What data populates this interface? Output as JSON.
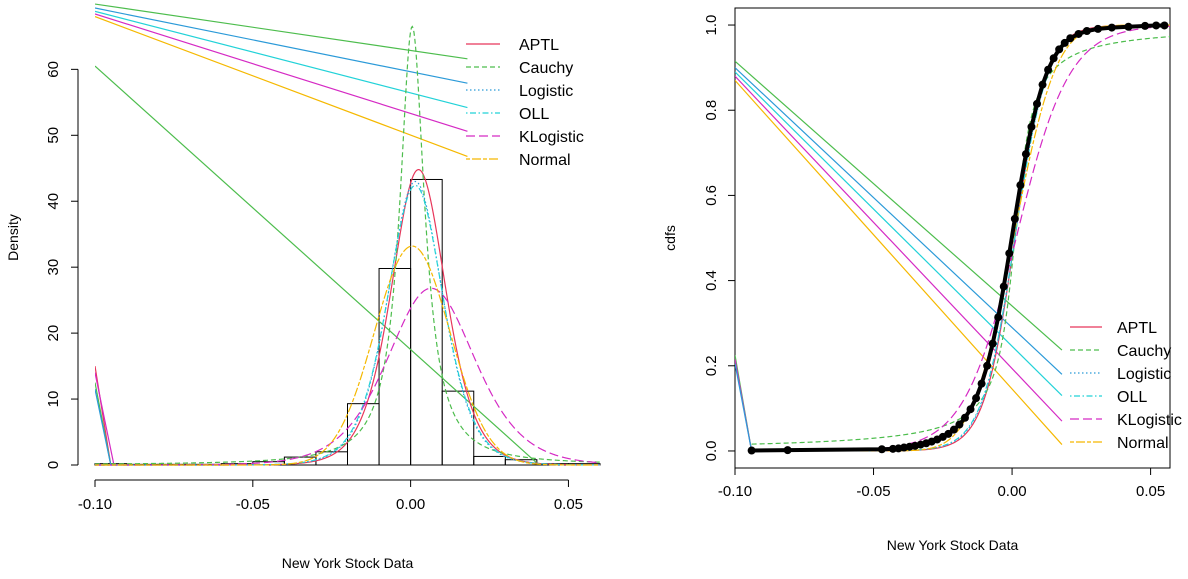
{
  "chart_data": [
    {
      "type": "histogram",
      "xlabel": "New York Stock Data",
      "ylabel": "Density",
      "xlim": [
        -0.1,
        0.06
      ],
      "ylim": [
        0,
        69
      ],
      "x_ticks": [
        -0.1,
        -0.05,
        0.0,
        0.05
      ],
      "x_tick_labels": [
        "-0.10",
        "-0.05",
        "0.00",
        "0.05"
      ],
      "y_ticks": [
        0,
        10,
        20,
        30,
        40,
        50,
        60
      ],
      "y_tick_labels": [
        "0",
        "10",
        "20",
        "30",
        "40",
        "50",
        "60"
      ],
      "histogram": {
        "breaks": [
          -0.1,
          -0.09,
          -0.08,
          -0.07,
          -0.06,
          -0.05,
          -0.04,
          -0.03,
          -0.02,
          -0.01,
          0.0,
          0.01,
          0.02,
          0.03,
          0.04,
          0.05,
          0.06
        ],
        "density": [
          0.2,
          0.1,
          0.1,
          0.1,
          0.2,
          0.5,
          1.2,
          2.0,
          9.3,
          29.8,
          43.3,
          11.2,
          1.3,
          0.8,
          0.2,
          0.2
        ]
      },
      "legend": {
        "position": "top-right",
        "entries": [
          {
            "label": "APTL",
            "color": "#e8365a",
            "dash": "solid"
          },
          {
            "label": "Cauchy",
            "color": "#4dbd4d",
            "dash": "dashed"
          },
          {
            "label": "Logistic",
            "color": "#2b9ad8",
            "dash": "dotted"
          },
          {
            "label": "OLL",
            "color": "#22d2d8",
            "dash": "dotdash"
          },
          {
            "label": "KLogistic",
            "color": "#d52ac4",
            "dash": "longdash"
          },
          {
            "label": "Normal",
            "color": "#f5b800",
            "dash": "twodash"
          }
        ]
      },
      "series": [
        {
          "name": "APTL",
          "distribution": "peaked",
          "location": 0.0025,
          "scale": 0.0072,
          "peak": 44.8
        },
        {
          "name": "Cauchy",
          "distribution": "cauchy",
          "location": 0.0005,
          "scale": 0.0048,
          "peak": 66.5
        },
        {
          "name": "Logistic",
          "distribution": "logistic",
          "location": 0.0015,
          "scale": 0.0058,
          "peak": 43.0
        },
        {
          "name": "OLL",
          "distribution": "logistic",
          "location": 0.0015,
          "scale": 0.0059,
          "peak": 42.4
        },
        {
          "name": "KLogistic",
          "distribution": "logistic",
          "location": 0.0065,
          "scale": 0.0093,
          "peak": 26.8
        },
        {
          "name": "Normal",
          "distribution": "normal",
          "location": 0.0005,
          "scale": 0.012,
          "peak": 33.2
        }
      ],
      "stray_lines": [
        {
          "series": "Cauchy",
          "points": [
            [
              -0.1,
              60.5
            ],
            [
              0.04,
              0.3
            ]
          ]
        },
        {
          "series": "Normal",
          "points": [
            [
              -0.1,
              68.0
            ],
            [
              0.018,
              46.8
            ]
          ]
        },
        {
          "series": "KLogistic",
          "points": [
            [
              -0.1,
              68.4
            ],
            [
              0.018,
              50.6
            ]
          ]
        },
        {
          "series": "OLL",
          "points": [
            [
              -0.1,
              68.8
            ],
            [
              0.018,
              54.2
            ]
          ]
        },
        {
          "series": "Logistic",
          "points": [
            [
              -0.1,
              69.3
            ],
            [
              0.018,
              57.9
            ]
          ]
        },
        {
          "series": "Cauchy",
          "points": [
            [
              -0.1,
              69.9
            ],
            [
              0.018,
              61.6
            ]
          ]
        },
        {
          "series": "APTL",
          "points": [
            [
              -0.1,
              15.0
            ],
            [
              -0.095,
              0.0
            ]
          ]
        },
        {
          "series": "KLogistic",
          "points": [
            [
              -0.1,
              14.0
            ],
            [
              -0.094,
              0.0
            ]
          ]
        },
        {
          "series": "Cauchy",
          "points": [
            [
              -0.1,
              12.5
            ],
            [
              -0.095,
              0.0
            ]
          ]
        },
        {
          "series": "Logistic",
          "points": [
            [
              -0.1,
              11.5
            ],
            [
              -0.095,
              0.0
            ]
          ]
        }
      ]
    },
    {
      "type": "line",
      "xlabel": "New York Stock Data",
      "ylabel": "cdfs",
      "xlim": [
        -0.1,
        0.057
      ],
      "ylim": [
        -0.04,
        1.04
      ],
      "x_ticks": [
        -0.1,
        -0.05,
        0.0,
        0.05
      ],
      "x_tick_labels": [
        "-0.10",
        "-0.05",
        "0.00",
        "0.05"
      ],
      "y_ticks": [
        0.0,
        0.2,
        0.4,
        0.6,
        0.8,
        1.0
      ],
      "y_tick_labels": [
        "0.0",
        "0.2",
        "0.4",
        "0.6",
        "0.8",
        "1.0"
      ],
      "legend": {
        "position": "bottom-right",
        "entries": [
          {
            "label": "APTL",
            "color": "#e8365a",
            "dash": "solid"
          },
          {
            "label": "Cauchy",
            "color": "#4dbd4d",
            "dash": "dashed"
          },
          {
            "label": "Logistic",
            "color": "#2b9ad8",
            "dash": "dotted"
          },
          {
            "label": "OLL",
            "color": "#22d2d8",
            "dash": "dotdash"
          },
          {
            "label": "KLogistic",
            "color": "#d52ac4",
            "dash": "longdash"
          },
          {
            "label": "Normal",
            "color": "#f5b800",
            "dash": "twodash"
          }
        ]
      },
      "series": [
        {
          "name": "APTL",
          "distribution": "logistic",
          "location": 0.001,
          "scale": 0.0056
        },
        {
          "name": "Cauchy",
          "distribution": "cauchy",
          "location": 0.001,
          "scale": 0.0048
        },
        {
          "name": "Logistic",
          "distribution": "logistic",
          "location": 0.001,
          "scale": 0.0058
        },
        {
          "name": "OLL",
          "distribution": "logistic",
          "location": 0.001,
          "scale": 0.0059
        },
        {
          "name": "KLogistic",
          "distribution": "logistic",
          "location": 0.0015,
          "scale": 0.0095
        },
        {
          "name": "Normal",
          "distribution": "normal",
          "location": 0.0005,
          "scale": 0.012
        }
      ],
      "empirical_points": [
        [
          -0.094,
          0.001
        ],
        [
          -0.081,
          0.002
        ],
        [
          -0.047,
          0.004
        ],
        [
          -0.043,
          0.005
        ],
        [
          -0.041,
          0.006
        ],
        [
          -0.039,
          0.008
        ],
        [
          -0.037,
          0.01
        ],
        [
          -0.035,
          0.012
        ],
        [
          -0.033,
          0.015
        ],
        [
          -0.031,
          0.018
        ],
        [
          -0.029,
          0.022
        ],
        [
          -0.027,
          0.027
        ],
        [
          -0.025,
          0.033
        ],
        [
          -0.023,
          0.04
        ],
        [
          -0.021,
          0.05
        ],
        [
          -0.019,
          0.062
        ],
        [
          -0.017,
          0.078
        ],
        [
          -0.015,
          0.098
        ],
        [
          -0.013,
          0.124
        ],
        [
          -0.011,
          0.158
        ],
        [
          -0.009,
          0.2
        ],
        [
          -0.007,
          0.252
        ],
        [
          -0.005,
          0.314
        ],
        [
          -0.003,
          0.386
        ],
        [
          -0.001,
          0.464
        ],
        [
          0.001,
          0.545
        ],
        [
          0.003,
          0.624
        ],
        [
          0.005,
          0.697
        ],
        [
          0.007,
          0.761
        ],
        [
          0.009,
          0.815
        ],
        [
          0.011,
          0.86
        ],
        [
          0.013,
          0.895
        ],
        [
          0.015,
          0.922
        ],
        [
          0.017,
          0.943
        ],
        [
          0.019,
          0.958
        ],
        [
          0.021,
          0.969
        ],
        [
          0.024,
          0.979
        ],
        [
          0.027,
          0.986
        ],
        [
          0.031,
          0.991
        ],
        [
          0.036,
          0.994
        ],
        [
          0.042,
          0.996
        ],
        [
          0.048,
          0.998
        ],
        [
          0.052,
          0.999
        ],
        [
          0.055,
          0.999
        ]
      ],
      "stray_lines": [
        {
          "series": "Cauchy",
          "points": [
            [
              -0.1,
              0.915
            ],
            [
              0.018,
              0.237
            ]
          ]
        },
        {
          "series": "Logistic",
          "points": [
            [
              -0.1,
              0.9
            ],
            [
              0.018,
              0.18
            ]
          ]
        },
        {
          "series": "OLL",
          "points": [
            [
              -0.1,
              0.89
            ],
            [
              0.018,
              0.13
            ]
          ]
        },
        {
          "series": "KLogistic",
          "points": [
            [
              -0.1,
              0.88
            ],
            [
              0.018,
              0.07
            ]
          ]
        },
        {
          "series": "Normal",
          "points": [
            [
              -0.1,
              0.87
            ],
            [
              0.018,
              0.015
            ]
          ]
        },
        {
          "series": "Cauchy",
          "points": [
            [
              -0.1,
              0.225
            ],
            [
              -0.094,
              0.0
            ]
          ]
        },
        {
          "series": "KLogistic",
          "points": [
            [
              -0.1,
              0.215
            ],
            [
              -0.094,
              0.0
            ]
          ]
        },
        {
          "series": "Logistic",
          "points": [
            [
              -0.1,
              0.205
            ],
            [
              -0.094,
              0.0
            ]
          ]
        }
      ]
    }
  ]
}
